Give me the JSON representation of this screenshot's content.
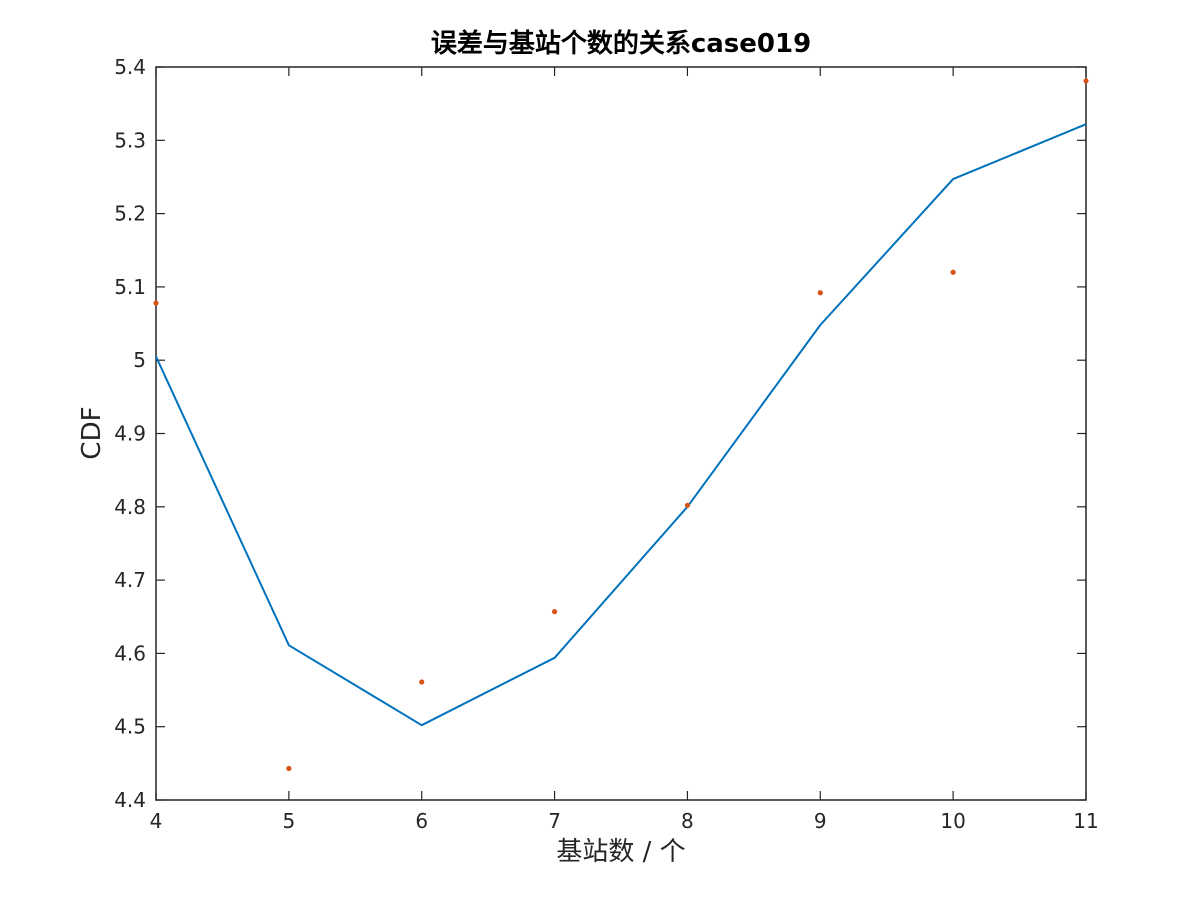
{
  "chart_data": {
    "type": "line",
    "title": "误差与基站个数的关系case019",
    "xlabel": "基站数 / 个",
    "ylabel": "CDF",
    "xlim": [
      4,
      11
    ],
    "ylim": [
      4.4,
      5.4
    ],
    "xticks": [
      "4",
      "5",
      "6",
      "7",
      "8",
      "9",
      "10",
      "11"
    ],
    "yticks": [
      "4.4",
      "4.5",
      "4.6",
      "4.7",
      "4.8",
      "4.9",
      "5",
      "5.1",
      "5.2",
      "5.3",
      "5.4"
    ],
    "grid": false,
    "series": [
      {
        "kind": "line",
        "color": "#0072BD",
        "x": [
          4,
          5,
          6,
          7,
          8,
          9,
          10,
          11
        ],
        "y": [
          5.005,
          4.611,
          4.502,
          4.594,
          4.8,
          5.048,
          5.247,
          5.322
        ]
      },
      {
        "kind": "scatter",
        "color": "#D95319",
        "x": [
          4,
          5,
          6,
          7,
          8,
          9,
          10,
          11
        ],
        "y": [
          5.078,
          4.443,
          4.561,
          4.657,
          4.802,
          5.092,
          5.12,
          5.381
        ]
      }
    ]
  }
}
